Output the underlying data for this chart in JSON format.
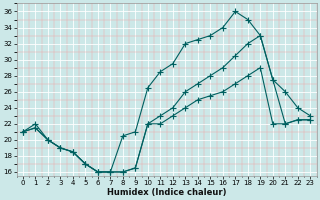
{
  "xlabel": "Humidex (Indice chaleur)",
  "background_color": "#cce8e8",
  "grid_major_color": "#ffffff",
  "grid_minor_color": "#f0aaaa",
  "line_color": "#006060",
  "xlim": [
    -0.5,
    23.5
  ],
  "ylim": [
    15.5,
    37
  ],
  "yticks": [
    16,
    18,
    20,
    22,
    24,
    26,
    28,
    30,
    32,
    34,
    36
  ],
  "xticks": [
    0,
    1,
    2,
    3,
    4,
    5,
    6,
    7,
    8,
    9,
    10,
    11,
    12,
    13,
    14,
    15,
    16,
    17,
    18,
    19,
    20,
    21,
    22,
    23
  ],
  "line_top_x": [
    0,
    1,
    2,
    3,
    4,
    5,
    6,
    7,
    8,
    9,
    10,
    11,
    12,
    13,
    14,
    15,
    16,
    17,
    18,
    19,
    20,
    21,
    22,
    23
  ],
  "line_top_y": [
    21,
    22,
    20,
    19,
    18.5,
    17,
    16,
    16,
    20.5,
    21,
    26.5,
    28.5,
    29.5,
    32,
    32.5,
    33,
    34,
    36,
    35,
    33,
    27.5,
    26,
    24,
    23
  ],
  "line_mid_x": [
    0,
    1,
    2,
    3,
    4,
    5,
    6,
    7,
    8,
    9,
    10,
    11,
    12,
    13,
    14,
    15,
    16,
    17,
    18,
    19,
    20,
    21,
    22,
    23
  ],
  "line_mid_y": [
    21,
    21.5,
    20,
    19,
    18.5,
    17,
    16,
    16,
    16,
    16.5,
    22,
    23,
    24,
    26,
    27,
    28,
    29,
    30.5,
    32,
    33,
    27.5,
    22,
    22.5,
    22.5
  ],
  "line_bot_x": [
    0,
    1,
    2,
    3,
    4,
    5,
    6,
    7,
    8,
    9,
    10,
    11,
    12,
    13,
    14,
    15,
    16,
    17,
    18,
    19,
    20,
    21,
    22,
    23
  ],
  "line_bot_y": [
    21,
    21.5,
    20,
    19,
    18.5,
    17,
    16,
    16,
    16,
    16.5,
    22,
    22,
    23,
    24,
    25,
    25.5,
    26,
    27,
    28,
    29,
    22,
    22,
    22.5,
    22.5
  ]
}
